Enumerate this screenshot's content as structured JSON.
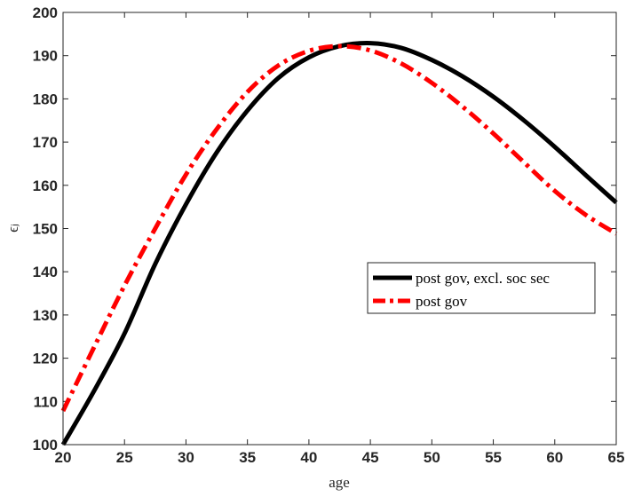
{
  "chart_data": {
    "type": "line",
    "xlabel": "age",
    "ylabel": "ϵⱼ",
    "xlim": [
      20,
      65
    ],
    "ylim": [
      100,
      200
    ],
    "xticks": [
      20,
      25,
      30,
      35,
      40,
      45,
      50,
      55,
      60,
      65
    ],
    "yticks": [
      100,
      110,
      120,
      130,
      140,
      150,
      160,
      170,
      180,
      190,
      200
    ],
    "grid": false,
    "legend_position": "right-middle",
    "series": [
      {
        "name": "post gov, excl. soc sec",
        "color": "#000000",
        "style": "solid",
        "x": [
          20,
          22.5,
          25,
          27.5,
          30,
          32.5,
          35,
          37.5,
          40,
          42.5,
          45,
          47.5,
          50,
          52.5,
          55,
          57.5,
          60,
          62.5,
          65
        ],
        "y": [
          100,
          112.3,
          125.7,
          141.8,
          155.6,
          167.6,
          177.3,
          184.8,
          189.6,
          192.2,
          192.9,
          191.8,
          189.0,
          185.2,
          180.5,
          175.0,
          168.9,
          162.4,
          156.0
        ]
      },
      {
        "name": "post gov",
        "color": "#ff0000",
        "style": "dash-dot",
        "x": [
          20,
          22.5,
          25,
          27.5,
          30,
          32.5,
          35,
          37.5,
          40,
          42.5,
          45,
          47.5,
          50,
          52.5,
          55,
          57.5,
          60,
          62.5,
          65
        ],
        "y": [
          107.8,
          122.4,
          136.8,
          150.0,
          162.5,
          173.0,
          181.6,
          187.7,
          191.1,
          192.2,
          191.2,
          188.2,
          183.7,
          178.2,
          172.0,
          165.3,
          158.7,
          153.2,
          148.8
        ]
      }
    ]
  }
}
